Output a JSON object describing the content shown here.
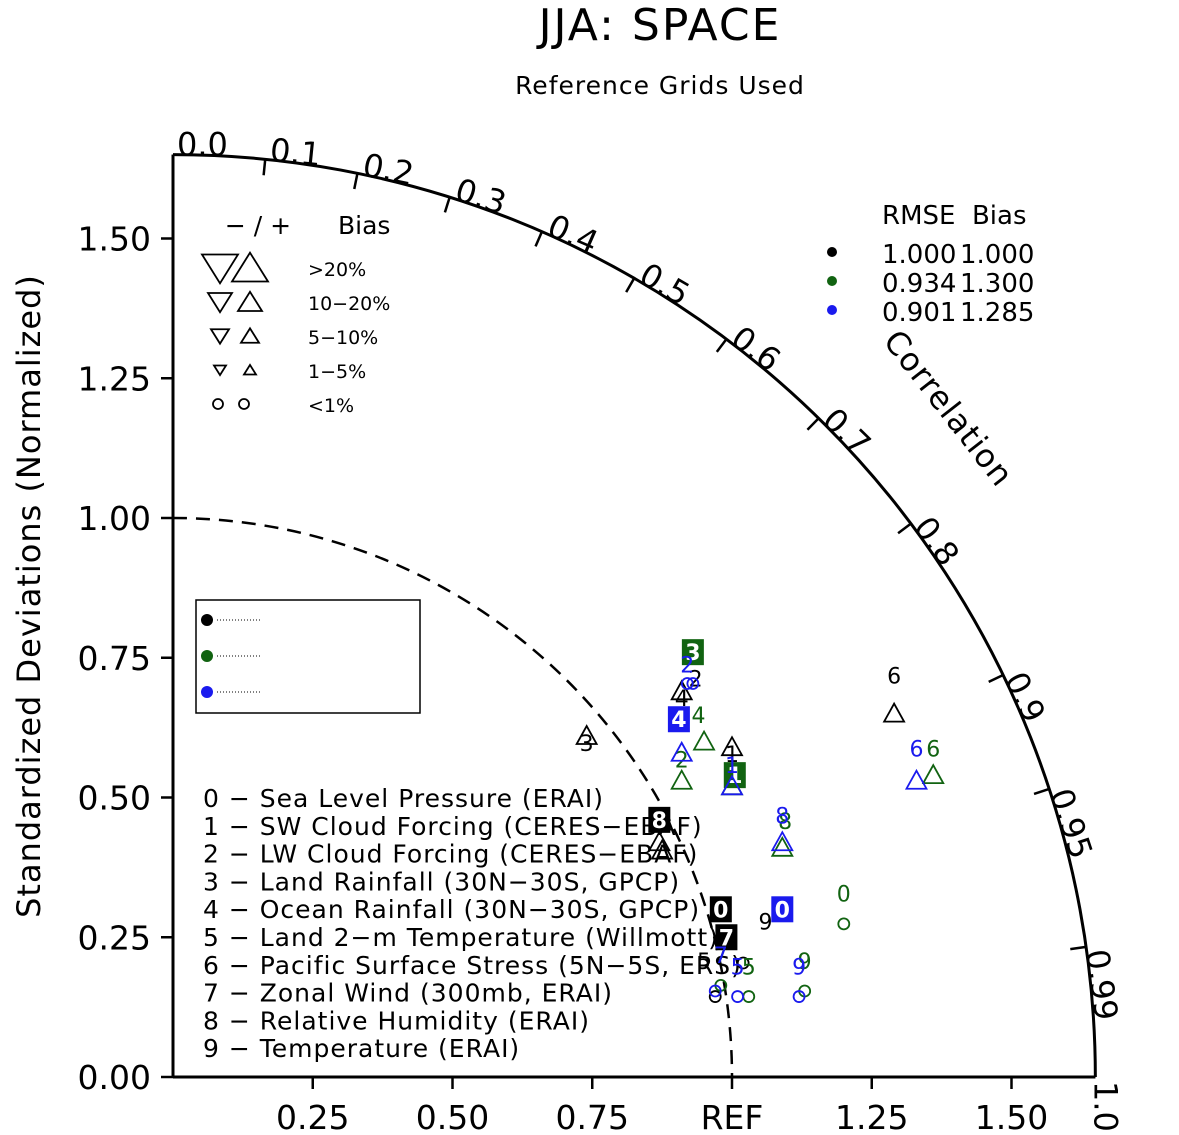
{
  "chart_data": {
    "type": "scatter",
    "subtype": "taylor-diagram",
    "title": "JJA: SPACE",
    "subtitle": "Reference Grids Used",
    "ylabel": "Standardized Deviations (Normalized)",
    "arc_label": "Correlation",
    "ref_label": "REF",
    "std_max": 1.65,
    "x_ticks": [
      "0.25",
      "0.50",
      "0.75",
      "REF",
      "1.25",
      "1.50"
    ],
    "x_tick_values": [
      0.25,
      0.5,
      0.75,
      1.0,
      1.25,
      1.5
    ],
    "y_ticks": [
      "0.00",
      "0.25",
      "0.50",
      "0.75",
      "1.00",
      "1.25",
      "1.50"
    ],
    "y_tick_values": [
      0,
      0.25,
      0.5,
      0.75,
      1.0,
      1.25,
      1.5
    ],
    "corr_labels": [
      "0.0",
      "0.1",
      "0.2",
      "0.3",
      "0.4",
      "0.5",
      "0.6",
      "0.7",
      "0.8",
      "0.9",
      "0.95",
      "0.99",
      "1.0"
    ],
    "corr_values": [
      0.0,
      0.1,
      0.2,
      0.3,
      0.4,
      0.5,
      0.6,
      0.7,
      0.8,
      0.9,
      0.95,
      0.99,
      1.0
    ],
    "bias_key": {
      "header_sign": "− / +",
      "header_bias": "Bias",
      "rows": [
        {
          "label": ">20%",
          "symbol": "triangle",
          "size": 3
        },
        {
          "label": "10−20%",
          "symbol": "triangle",
          "size": 2
        },
        {
          "label": "5−10%",
          "symbol": "triangle",
          "size": 1.5
        },
        {
          "label": "1−5%",
          "symbol": "triangle",
          "size": 1
        },
        {
          "label": "<1%",
          "symbol": "circle",
          "size": 1
        }
      ]
    },
    "rmse_table": {
      "header": "RMSE  Bias",
      "rows": [
        {
          "color": "#000000",
          "rmse": "1.000",
          "bias": "1.000"
        },
        {
          "color": "#116311",
          "rmse": "0.934",
          "bias": "1.300"
        },
        {
          "color": "#1a1aee",
          "rmse": "0.901",
          "bias": "1.285"
        }
      ]
    },
    "legend_placement": "middle-left",
    "series_colors": [
      "#000000",
      "#116311",
      "#1a1aee"
    ],
    "variables": [
      "0 − Sea Level Pressure (ERAI)",
      "1 − SW Cloud Forcing (CERES−EBAF)",
      "2 − LW Cloud Forcing (CERES−EBAF)",
      "3 − Land Rainfall (30N−30S, GPCP)",
      "4 − Ocean Rainfall (30N−30S, GPCP)",
      "5 − Land 2−m Temperature (Willmott)",
      "6 − Pacific Surface Stress (5N−5S, ERS)",
      "7 − Zonal Wind (300mb, ERAI)",
      "8 − Relative Humidity (ERAI)",
      "9 − Temperature (ERAI)"
    ],
    "series": [
      {
        "color": "#000000",
        "points": [
          {
            "id": "0",
            "x": 0.98,
            "y": 0.3,
            "shape": "box",
            "num_dx": 0,
            "num_dy": 0
          },
          {
            "id": "1",
            "x": 1.0,
            "y": 0.59,
            "shape": "tri_up",
            "num_dx": 0,
            "num_dy": -0.03
          },
          {
            "id": "2",
            "x": 0.875,
            "y": 0.405,
            "shape": "tri_up",
            "num_dx": 0.06,
            "num_dy": 0.29
          },
          {
            "id": "3",
            "x": 0.74,
            "y": 0.61,
            "shape": "tri_up",
            "num_dx": 0,
            "num_dy": -0.03
          },
          {
            "id": "4",
            "x": 0.91,
            "y": 0.69,
            "shape": "tri_up",
            "num_dx": 0,
            "num_dy": -0.03
          },
          {
            "id": "5",
            "x": 0.97,
            "y": 0.16,
            "shape": "circle",
            "num_dx": -0.02,
            "num_dy": 0.03
          },
          {
            "id": "6",
            "x": 1.29,
            "y": 0.65,
            "shape": "tri_up",
            "num_dx": 0,
            "num_dy": 0.05
          },
          {
            "id": "7",
            "x": 0.99,
            "y": 0.25,
            "shape": "box_only",
            "num_dx": -0.03,
            "num_dy": 0
          },
          {
            "id": "8",
            "x": 0.87,
            "y": 0.42,
            "shape": "box_tri",
            "num_dx": 0,
            "num_dy": 0.04
          },
          {
            "id": "9",
            "x": 1.02,
            "y": 0.22,
            "shape": "circle",
            "num_dx": 0.04,
            "num_dy": 0.04
          }
        ]
      },
      {
        "color": "#116311",
        "points": [
          {
            "id": "0",
            "x": 1.2,
            "y": 0.29,
            "shape": "circle",
            "num_dx": 0,
            "num_dy": 0.02
          },
          {
            "id": "1",
            "x": 1.0,
            "y": 0.52,
            "shape": "tri_up_box",
            "num_dx": 0.005,
            "num_dy": 0.02
          },
          {
            "id": "2",
            "x": 0.91,
            "y": 0.53,
            "shape": "tri_up",
            "num_dx": 0,
            "num_dy": 0.02
          },
          {
            "id": "3",
            "x": 0.93,
            "y": 0.76,
            "shape": "box",
            "num_dx": 0,
            "num_dy": 0
          },
          {
            "id": "4",
            "x": 0.95,
            "y": 0.6,
            "shape": "tri_up",
            "num_dx": -0.01,
            "num_dy": 0.03
          },
          {
            "id": "5",
            "x": 1.03,
            "y": 0.16,
            "shape": "circle",
            "num_dx": 0,
            "num_dy": 0.02
          },
          {
            "id": "6",
            "x": 1.36,
            "y": 0.54,
            "shape": "tri_up",
            "num_dx": 0,
            "num_dy": 0.03
          },
          {
            "id": "7",
            "x": 0.98,
            "y": 0.18,
            "shape": "circle",
            "num_dx": 0,
            "num_dy": 0.02
          },
          {
            "id": "8",
            "x": 1.09,
            "y": 0.41,
            "shape": "tri_up",
            "num_dx": 0.005,
            "num_dy": 0.03
          },
          {
            "id": "9",
            "x": 1.13,
            "y": 0.17,
            "shape": "circle",
            "num_dx": 0,
            "num_dy": 0.02
          }
        ]
      },
      {
        "color": "#1a1aee",
        "points": [
          {
            "id": "0",
            "x": 1.09,
            "y": 0.3,
            "shape": "box",
            "num_dx": 0,
            "num_dy": 0
          },
          {
            "id": "1",
            "x": 1.0,
            "y": 0.52,
            "shape": "tri_up",
            "num_dx": 0,
            "num_dy": 0.02
          },
          {
            "id": "2",
            "x": 0.92,
            "y": 0.72,
            "shape": "circle",
            "num_dx": 0,
            "num_dy": 0
          },
          {
            "id": "3",
            "x": 0.93,
            "y": 0.72,
            "shape": "circle_only",
            "num_dx": 0,
            "num_dy": 0
          },
          {
            "id": "4",
            "x": 0.91,
            "y": 0.58,
            "shape": "box_tri",
            "num_dx": -0.005,
            "num_dy": 0.06
          },
          {
            "id": "5",
            "x": 1.01,
            "y": 0.16,
            "shape": "circle",
            "num_dx": 0,
            "num_dy": 0.02
          },
          {
            "id": "6",
            "x": 1.33,
            "y": 0.53,
            "shape": "tri_up",
            "num_dx": 0,
            "num_dy": 0.04
          },
          {
            "id": "7",
            "x": 0.97,
            "y": 0.17,
            "shape": "circle",
            "num_dx": 0.01,
            "num_dy": 0.03
          },
          {
            "id": "8",
            "x": 1.09,
            "y": 0.42,
            "shape": "tri_up",
            "num_dx": 0,
            "num_dy": 0.03
          },
          {
            "id": "9",
            "x": 1.12,
            "y": 0.16,
            "shape": "circle",
            "num_dx": 0,
            "num_dy": 0.02
          }
        ]
      }
    ]
  }
}
